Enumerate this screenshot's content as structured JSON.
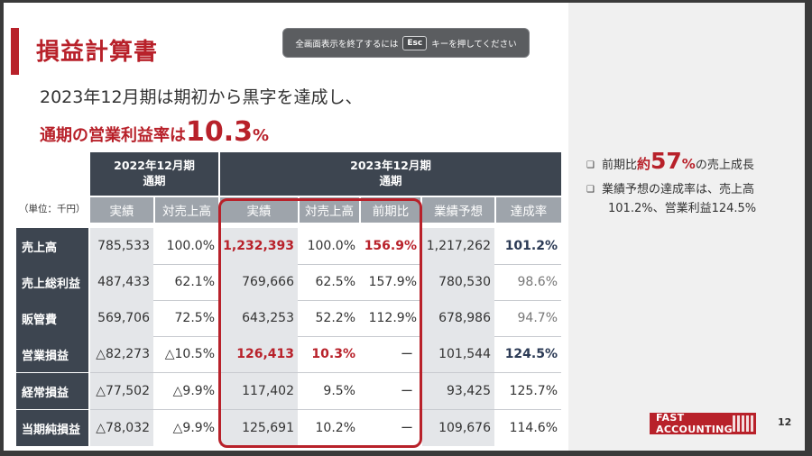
{
  "title": "損益計算書",
  "esc_banner": {
    "before": "全画面表示を終了するには",
    "key": "Esc",
    "after": "キーを押してください"
  },
  "subtitle": "2023年12月期は期初から黒字を達成し、",
  "headline": {
    "prefix": "通期の営業利益率は",
    "value": "10.3",
    "suffix": "%"
  },
  "table": {
    "unit_label": "（単位：千円）",
    "groups": [
      {
        "line1": "2022年12月期",
        "line2": "通期"
      },
      {
        "line1": "2023年12月期",
        "line2": "通期"
      }
    ],
    "columns": [
      "実績",
      "対売上高",
      "実績",
      "対売上高",
      "前期比",
      "業績予想",
      "達成率"
    ],
    "rows": [
      {
        "label": "売上高",
        "values": [
          "785,533",
          "100.0%",
          "1,232,393",
          "100.0%",
          "156.9%",
          "1,217,262",
          "101.2%"
        ]
      },
      {
        "label": "売上総利益",
        "values": [
          "487,433",
          "62.1%",
          "769,666",
          "62.5%",
          "157.9%",
          "780,530",
          "98.6%"
        ]
      },
      {
        "label": "販管費",
        "values": [
          "569,706",
          "72.5%",
          "643,253",
          "52.2%",
          "112.9%",
          "678,986",
          "94.7%"
        ]
      },
      {
        "label": "営業損益",
        "values": [
          "△82,273",
          "△10.5%",
          "126,413",
          "10.3%",
          "ー",
          "101,544",
          "124.5%"
        ]
      },
      {
        "label": "経常損益",
        "values": [
          "△77,502",
          "△9.9%",
          "117,402",
          "9.5%",
          "ー",
          "93,425",
          "125.7%"
        ]
      },
      {
        "label": "当期純損益",
        "values": [
          "△78,032",
          "△9.9%",
          "125,691",
          "10.2%",
          "ー",
          "109,676",
          "114.6%"
        ]
      }
    ]
  },
  "bullets": [
    {
      "mark": "❑",
      "prefix": "前期比",
      "em": "約",
      "num": "57",
      "pct": "%",
      "suffix": "の売上成長"
    },
    {
      "mark": "❑",
      "line1": "業績予想の達成率は、売上高",
      "line2": "101.2%、営業利益124.5%"
    }
  ],
  "logo": "FAST ACCOUNTING",
  "page_number": "12",
  "colors": {
    "accent": "#b8212a",
    "header": "#3d4550",
    "subheader": "#9ea4ab",
    "shade": "#e4e6e9",
    "navy": "#2b3a55"
  }
}
